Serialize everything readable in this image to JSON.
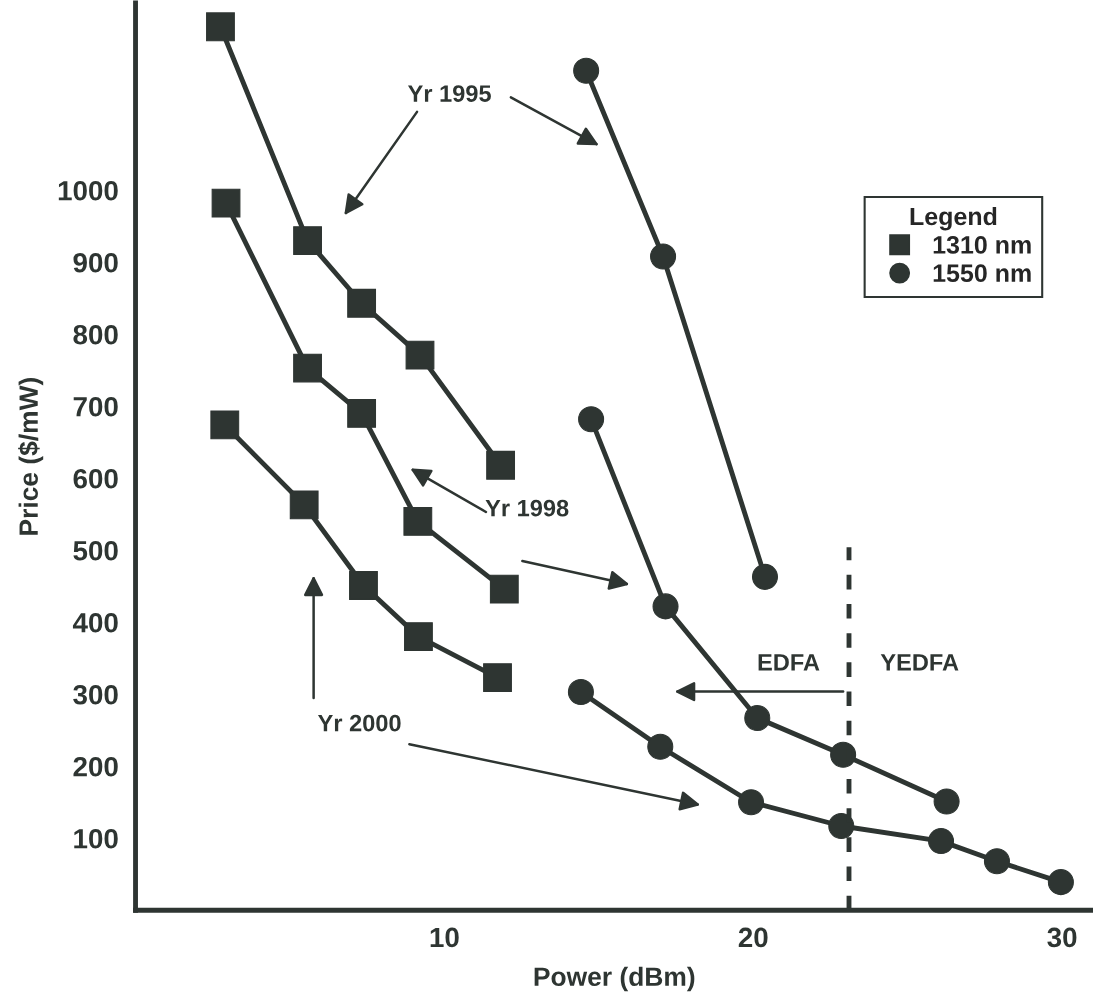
{
  "chart_data": {
    "type": "line",
    "xlabel": "Power (dBm)",
    "ylabel": "Price ($/mW)",
    "xlim": [
      0,
      31
    ],
    "xticks": [
      10,
      20,
      30
    ],
    "ylim": [
      0,
      1260
    ],
    "yticks": [
      100,
      200,
      300,
      400,
      500,
      600,
      700,
      800,
      900,
      1000
    ],
    "grid": false,
    "legend": "top right",
    "legend_title": "Legend",
    "series": [
      {
        "name": "1310 nm",
        "color": "#2e3532",
        "marker": "square",
        "x": [
          2.75,
          5.57,
          7.32,
          9.21,
          11.82
        ],
        "values": [
          1227,
          930,
          843,
          771,
          618
        ]
      },
      {
        "color": "#2e3532",
        "marker": "square",
        "x": [
          2.93,
          5.57,
          7.32,
          9.14,
          11.94
        ],
        "values": [
          982,
          753,
          690,
          540,
          446
        ]
      },
      {
        "color": "#2e3532",
        "marker": "square",
        "x": [
          2.89,
          5.46,
          7.38,
          9.16,
          11.72
        ],
        "values": [
          674,
          563,
          451,
          380,
          323
        ]
      },
      {
        "name": "1550 nm",
        "color": "#2e3532",
        "marker": "circle",
        "x": [
          14.59,
          17.08,
          20.38
        ],
        "values": [
          1166,
          908,
          463
        ]
      },
      {
        "color": "#2e3532",
        "marker": "circle",
        "x": [
          14.75,
          17.16,
          20.13,
          22.91,
          26.26
        ],
        "values": [
          682,
          422,
          267,
          216,
          151
        ]
      },
      {
        "color": "#2e3532",
        "marker": "circle",
        "x": [
          14.42,
          16.99,
          19.93,
          22.85,
          26.08,
          27.89,
          29.96
        ],
        "values": [
          303,
          227,
          150,
          117,
          96,
          68,
          39
        ]
      }
    ],
    "ref_lines": [
      {
        "axis": "x",
        "value": 23.1,
        "line_style": "dashed",
        "color": "#2e3532"
      }
    ],
    "annotations": [
      "Yr 1995",
      "Yr 1998",
      "Yr 2000",
      "EDFA",
      "YEDFA"
    ]
  }
}
